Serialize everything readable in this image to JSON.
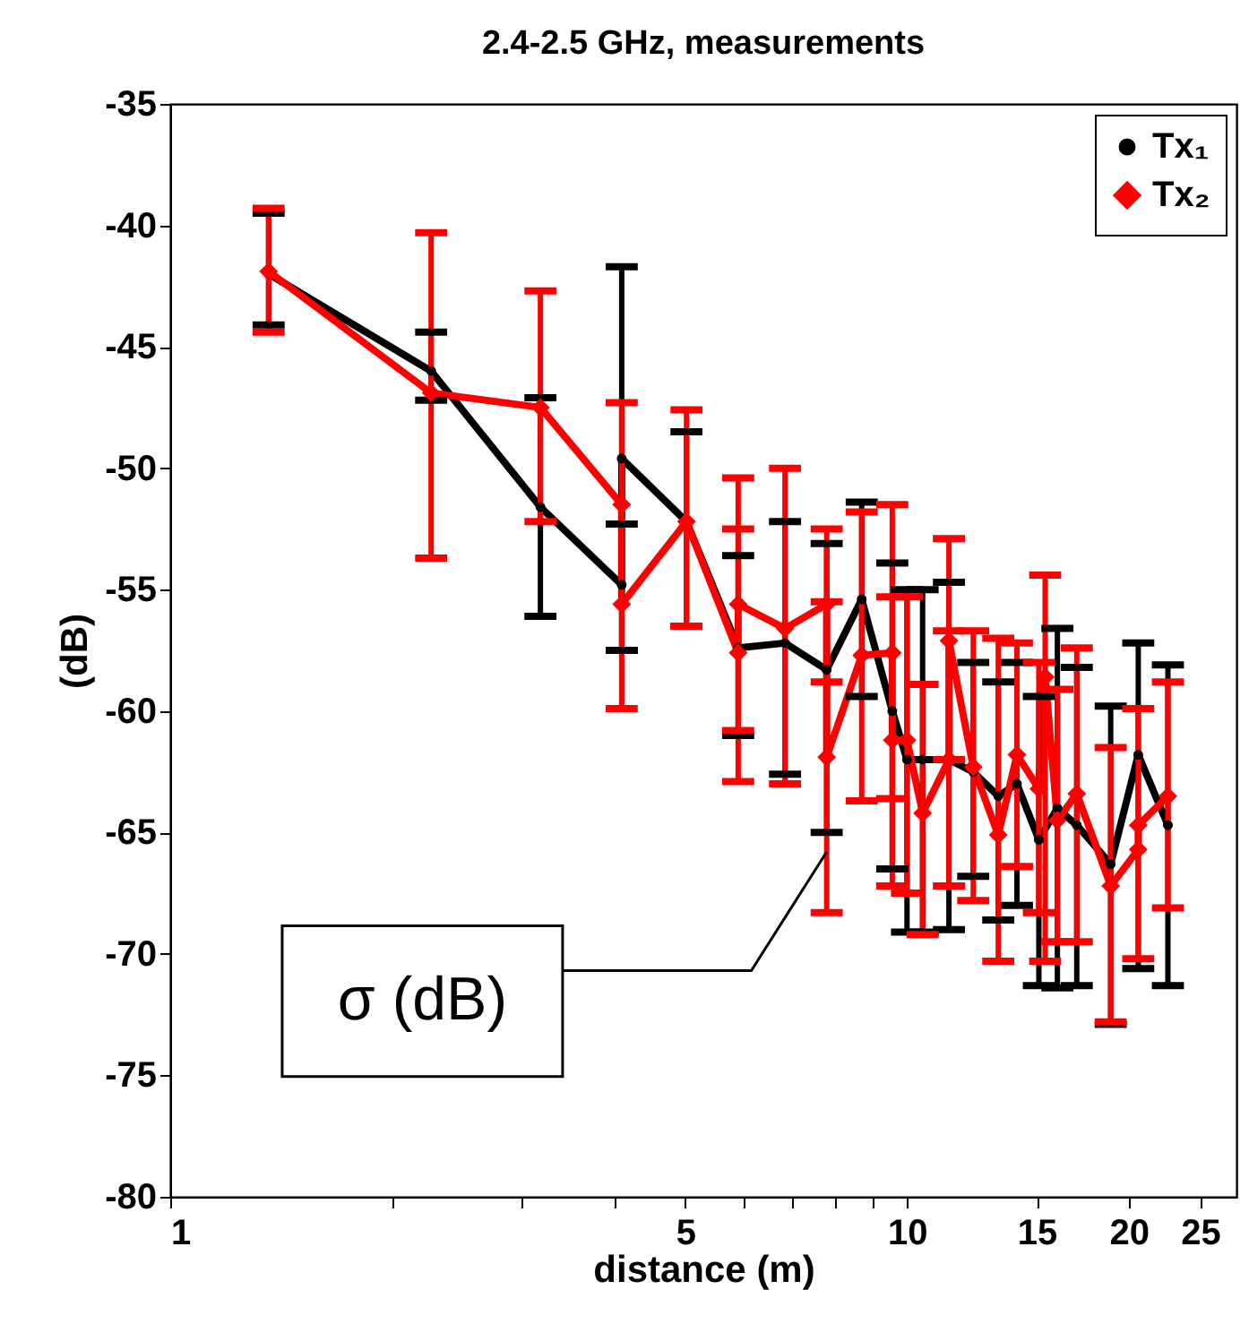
{
  "chart_data": {
    "type": "line",
    "title": "2.4-2.5 GHz, measurements",
    "xlabel": "distance (m)",
    "ylabel": "(dB)",
    "log": "x",
    "xlim": [
      1,
      28
    ],
    "xticks": [
      1,
      {
        "value": 2,
        "label": null
      },
      {
        "value": 3,
        "label": null
      },
      {
        "value": 4,
        "label": null
      },
      5,
      {
        "value": 6,
        "label": null
      },
      {
        "value": 7,
        "label": null
      },
      {
        "value": 8,
        "label": null
      },
      {
        "value": 9,
        "label": null
      },
      10,
      15,
      20,
      25
    ],
    "ylim": [
      -80,
      -35
    ],
    "yticks": [
      -80,
      -75,
      -70,
      -65,
      -60,
      -55,
      -50,
      -45,
      -40,
      -35
    ],
    "grid": false,
    "legend": "top right",
    "annotations": [
      {
        "text": "σ (dB)",
        "x": 7.78,
        "y": -65.8
      }
    ],
    "series": [
      {
        "name": "Tx₁",
        "color": "#000000",
        "marker": "circle",
        "x": [
          1.36,
          2.26,
          3.18,
          4.1,
          4.1,
          5.02,
          5.9,
          6.83,
          7.78,
          8.68,
          9.55,
          10.0,
          10.5,
          11.4,
          12.3,
          13.3,
          14.1,
          15.1,
          16.0,
          17.0,
          18.9,
          20.6,
          22.6
        ],
        "values": [
          -42,
          -46,
          -51.6,
          -54.8,
          -49.6,
          -52.2,
          -57.4,
          -57.2,
          -58.3,
          -55.4,
          -60,
          -62,
          -62,
          -62,
          -62.5,
          -63.5,
          -63,
          -65.3,
          -64,
          -64.7,
          -66.3,
          -61.8,
          -64.7
        ],
        "errors": [
          [
            -44.1,
            -39.5
          ],
          [
            -47.2,
            -44.4
          ],
          [
            -56.1,
            -47.1
          ],
          [
            -57.5,
            -52.3
          ],
          [
            -57.5,
            -41.7
          ],
          [
            -56.5,
            -48.5
          ],
          [
            -61,
            -53.6
          ],
          [
            -62.6,
            -52.2
          ],
          [
            -65,
            -53.1
          ],
          [
            -59.4,
            -51.4
          ],
          [
            -66.5,
            -53.9
          ],
          [
            -69.1,
            -55
          ],
          [
            -69.1,
            -55
          ],
          [
            -69,
            -54.7
          ],
          [
            -66.8,
            -58
          ],
          [
            -68.6,
            -58.8
          ],
          [
            -68,
            -58
          ],
          [
            -71.3,
            -59.4
          ],
          [
            -71.4,
            -56.6
          ],
          [
            -71.3,
            -58.2
          ],
          [
            -72.9,
            -59.8
          ],
          [
            -70.6,
            -57.2
          ],
          [
            -71.3,
            -58.1
          ]
        ]
      },
      {
        "name": "Tx₂",
        "color": "#ff0000",
        "marker": "diamond",
        "x": [
          1.36,
          2.26,
          3.18,
          4.1,
          4.1,
          5.02,
          5.9,
          5.9,
          6.83,
          7.78,
          7.78,
          8.68,
          9.55,
          9.55,
          10.0,
          10.5,
          11.4,
          11.4,
          12.3,
          13.3,
          14.1,
          15.1,
          15.4,
          16.0,
          17.0,
          18.9,
          20.6,
          20.6,
          22.6
        ],
        "values": [
          -41.9,
          -46.9,
          -47.5,
          -51.5,
          -55.6,
          -52.2,
          -57.6,
          -55.6,
          -56.6,
          -55.6,
          -61.9,
          -57.7,
          -57.6,
          -61.2,
          -61.2,
          -64.2,
          -62,
          -57.1,
          -62.3,
          -65.1,
          -61.8,
          -63.2,
          -58.6,
          -64.5,
          -63.4,
          -67.2,
          -65.7,
          -64.7,
          -63.5
        ],
        "errors": [
          [
            -44.4,
            -39.3
          ],
          [
            -53.7,
            -40.3
          ],
          [
            -52.2,
            -42.7
          ],
          [
            -59.9,
            -47.3
          ],
          null,
          [
            -56.5,
            -47.6
          ],
          [
            -60.8,
            -52.5
          ],
          [
            -62.9,
            -50.4
          ],
          [
            -63,
            -50
          ],
          [
            -58.8,
            -52.5
          ],
          [
            -68.3,
            -55.5
          ],
          [
            -63.7,
            -51.8
          ],
          [
            -63.6,
            -51.5
          ],
          [
            -67.2,
            -55.3
          ],
          [
            -67.5,
            -55.3
          ],
          [
            -69.2,
            -58.9
          ],
          [
            -67.2,
            -56.7
          ],
          [
            -62,
            -52.9
          ],
          [
            -67.8,
            -56.7
          ],
          [
            -70.3,
            -57
          ],
          [
            -66.4,
            -57.2
          ],
          [
            -68.3,
            -58
          ],
          [
            -70.3,
            -54.4
          ],
          [
            -69.5,
            -59.1
          ],
          [
            -69.5,
            -57.4
          ],
          [
            -72.8,
            -61.5
          ],
          [
            -70.2,
            -59.9
          ],
          null,
          [
            -68.1,
            -58.8
          ]
        ]
      }
    ]
  }
}
